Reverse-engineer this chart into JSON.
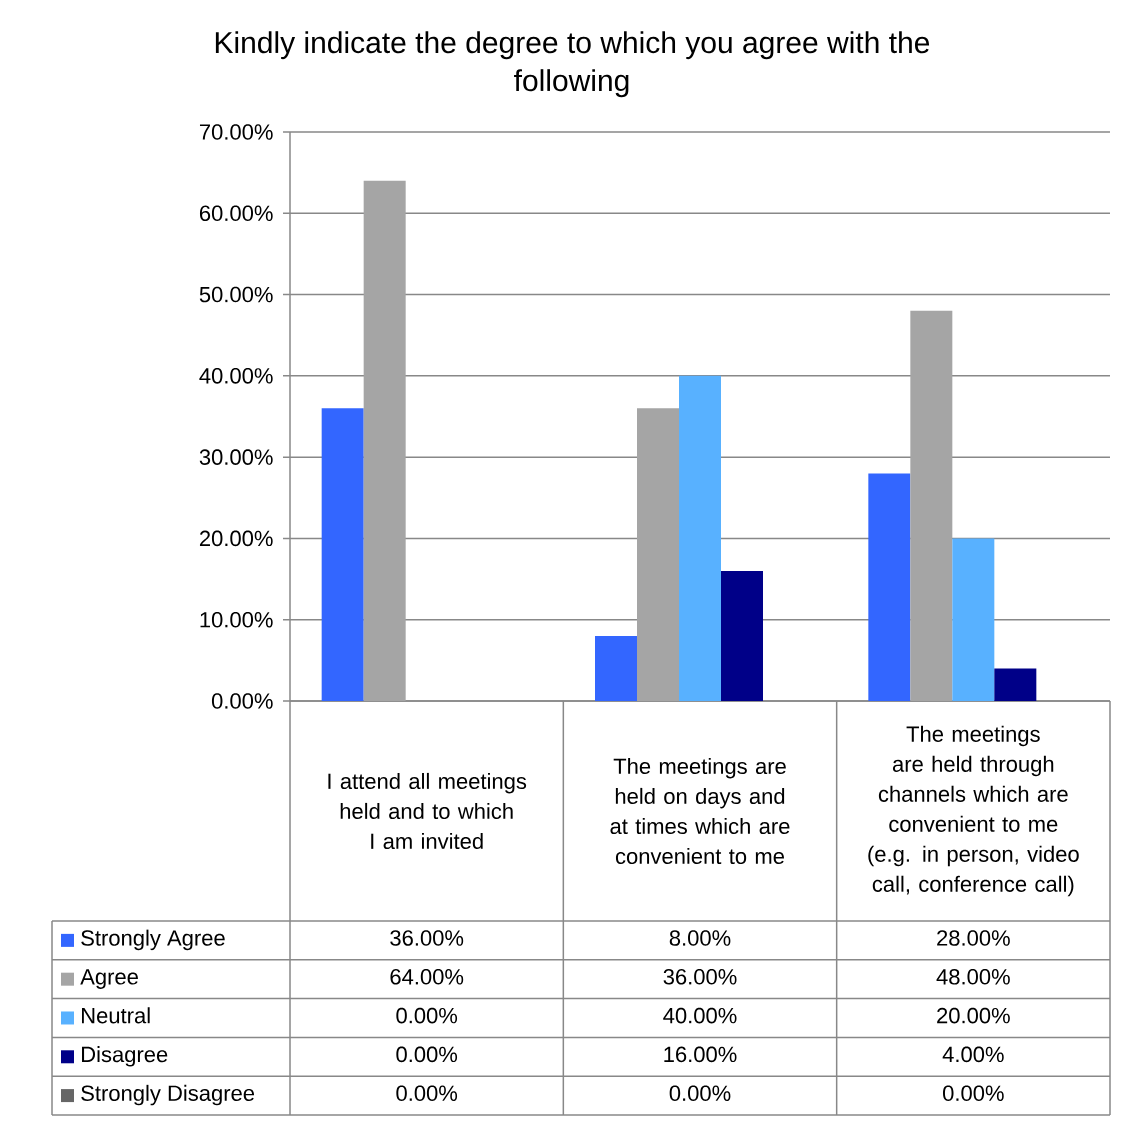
{
  "chart_data": {
    "type": "bar",
    "title": "Kindly indicate the degree to which you agree with the following",
    "categories": [
      "I attend all meetings held and to which I am invited",
      "The meetings are held on days and at times which are convenient to me",
      "The meetings are held through channels which are convenient to me (e.g. in person, video call, conference call)"
    ],
    "series": [
      {
        "name": "Strongly Agree",
        "color": "#3366ff",
        "values": [
          36,
          8,
          28
        ],
        "value_labels": [
          "36.00%",
          "8.00%",
          "28.00%"
        ]
      },
      {
        "name": "Agree",
        "color": "#a5a5a5",
        "values": [
          64,
          36,
          48
        ],
        "value_labels": [
          "64.00%",
          "36.00%",
          "48.00%"
        ]
      },
      {
        "name": "Neutral",
        "color": "#58b1ff",
        "values": [
          0,
          40,
          20
        ],
        "value_labels": [
          "0.00%",
          "40.00%",
          "20.00%"
        ]
      },
      {
        "name": "Disagree",
        "color": "#000088",
        "values": [
          0,
          16,
          4
        ],
        "value_labels": [
          "0.00%",
          "16.00%",
          "4.00%"
        ]
      },
      {
        "name": "Strongly Disagree",
        "color": "#666666",
        "values": [
          0,
          0,
          0
        ],
        "value_labels": [
          "0.00%",
          "0.00%",
          "0.00%"
        ]
      }
    ],
    "ylim": [
      0,
      70
    ],
    "yticks": [
      {
        "value": 0,
        "label": "0.00%"
      },
      {
        "value": 10,
        "label": "10.00%"
      },
      {
        "value": 20,
        "label": "20.00%"
      },
      {
        "value": 30,
        "label": "30.00%"
      },
      {
        "value": 40,
        "label": "40.00%"
      },
      {
        "value": 50,
        "label": "50.00%"
      },
      {
        "value": 60,
        "label": "60.00%"
      },
      {
        "value": 70,
        "label": "70.00%"
      }
    ],
    "grid": "y",
    "legend": "bottom"
  }
}
